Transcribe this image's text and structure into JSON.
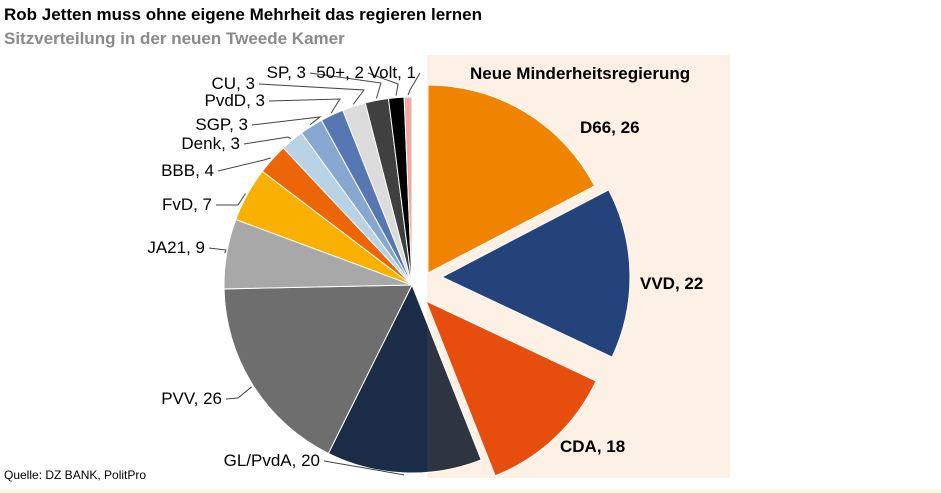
{
  "title": "Rob Jetten muss ohne eigene Mehrheit das regieren lernen",
  "subtitle": "Sitzverteilung in der neuen Tweede Kamer",
  "source": "Quelle: DZ BANK, PolitPro",
  "highlight_label": "Neue Minderheitsregierung",
  "chart_data": {
    "type": "pie",
    "start": "12 o'clock, clockwise",
    "slices": [
      {
        "name": "D66",
        "value": 26,
        "label": "D66, 26",
        "color": "#f08300",
        "exploded": true
      },
      {
        "name": "VVD",
        "value": 22,
        "label": "VVD, 22",
        "color": "#24437b",
        "exploded": true
      },
      {
        "name": "CDA",
        "value": 18,
        "label": "CDA, 18",
        "color": "#e74e0e",
        "exploded": true
      },
      {
        "name": "GL/PvdA",
        "value": 20,
        "label": "GL/PvdA, 20",
        "color": "#1b2c47"
      },
      {
        "name": "PVV",
        "value": 26,
        "label": "PVV, 26",
        "color": "#6e6e6e"
      },
      {
        "name": "JA21",
        "value": 9,
        "label": "JA21, 9",
        "color": "#a8a8a8"
      },
      {
        "name": "FvD",
        "value": 7,
        "label": "FvD, 7",
        "color": "#f9b000"
      },
      {
        "name": "BBB",
        "value": 4,
        "label": "BBB, 4",
        "color": "#ec6608"
      },
      {
        "name": "Denk",
        "value": 3,
        "label": "Denk, 3",
        "color": "#b9d3e6"
      },
      {
        "name": "SGP",
        "value": 3,
        "label": "SGP, 3",
        "color": "#86a7cf"
      },
      {
        "name": "PvdD",
        "value": 3,
        "label": "PvdD, 3",
        "color": "#5677b1"
      },
      {
        "name": "CU",
        "value": 3,
        "label": "CU, 3",
        "color": "#dcdcdc"
      },
      {
        "name": "SP",
        "value": 3,
        "label": "SP, 3",
        "color": "#404040"
      },
      {
        "name": "50+",
        "value": 2,
        "label": "50+, 2",
        "color": "#000000"
      },
      {
        "name": "Volt",
        "value": 1,
        "label": "Volt, 1",
        "color": "#f0a8a0"
      }
    ]
  }
}
